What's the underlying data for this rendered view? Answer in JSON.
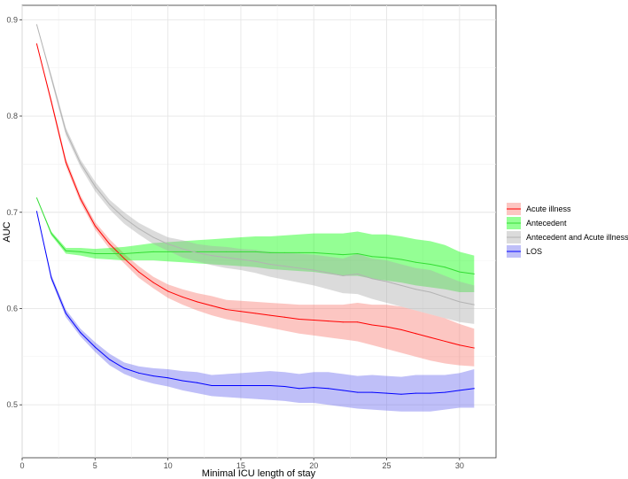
{
  "chart_data": {
    "type": "line",
    "title": "",
    "xlabel": "Minimal ICU length of stay",
    "ylabel": "AUC",
    "xlim": [
      0,
      32.5
    ],
    "ylim": [
      0.445,
      0.915
    ],
    "x_ticks": [
      0,
      5,
      10,
      15,
      20,
      25,
      30
    ],
    "y_ticks": [
      0.5,
      0.6,
      0.7,
      0.8,
      0.9
    ],
    "x_tick_labels": [
      "0",
      "5",
      "10",
      "15",
      "20",
      "25",
      "30"
    ],
    "y_tick_labels": [
      "0.5",
      "0.6",
      "0.7",
      "0.8",
      "0.9"
    ],
    "grid": true,
    "legend_position": "right",
    "x": [
      1,
      2,
      3,
      4,
      5,
      6,
      7,
      8,
      9,
      10,
      11,
      12,
      13,
      14,
      15,
      16,
      17,
      18,
      19,
      20,
      21,
      22,
      23,
      24,
      25,
      26,
      27,
      28,
      29,
      30,
      31
    ],
    "series": [
      {
        "name": "Acute illness",
        "color": "#F8766D",
        "line_color": "#FF0000",
        "values": [
          0.875,
          0.815,
          0.752,
          0.714,
          0.686,
          0.667,
          0.652,
          0.638,
          0.627,
          0.618,
          0.612,
          0.607,
          0.603,
          0.599,
          0.597,
          0.595,
          0.593,
          0.591,
          0.589,
          0.588,
          0.587,
          0.586,
          0.586,
          0.583,
          0.581,
          0.578,
          0.574,
          0.57,
          0.566,
          0.562,
          0.559
        ],
        "lower": [
          0.875,
          0.812,
          0.748,
          0.71,
          0.682,
          0.662,
          0.647,
          0.632,
          0.621,
          0.611,
          0.604,
          0.598,
          0.593,
          0.589,
          0.586,
          0.583,
          0.58,
          0.577,
          0.574,
          0.572,
          0.57,
          0.568,
          0.566,
          0.562,
          0.558,
          0.554,
          0.55,
          0.546,
          0.543,
          0.541,
          0.54
        ],
        "upper": [
          0.875,
          0.818,
          0.756,
          0.718,
          0.69,
          0.672,
          0.657,
          0.644,
          0.633,
          0.625,
          0.62,
          0.616,
          0.613,
          0.609,
          0.608,
          0.607,
          0.606,
          0.605,
          0.604,
          0.604,
          0.604,
          0.604,
          0.606,
          0.604,
          0.604,
          0.602,
          0.598,
          0.594,
          0.59,
          0.584,
          0.579
        ]
      },
      {
        "name": "Antecedent",
        "color": "#00FF00",
        "line_color": "#33DD33",
        "values": [
          0.715,
          0.678,
          0.66,
          0.659,
          0.657,
          0.657,
          0.657,
          0.658,
          0.659,
          0.659,
          0.659,
          0.659,
          0.659,
          0.659,
          0.659,
          0.659,
          0.658,
          0.658,
          0.658,
          0.658,
          0.657,
          0.656,
          0.657,
          0.654,
          0.653,
          0.651,
          0.648,
          0.646,
          0.643,
          0.638,
          0.636
        ],
        "lower": [
          0.715,
          0.676,
          0.657,
          0.655,
          0.652,
          0.651,
          0.65,
          0.65,
          0.65,
          0.649,
          0.648,
          0.647,
          0.646,
          0.645,
          0.644,
          0.643,
          0.641,
          0.64,
          0.639,
          0.638,
          0.636,
          0.634,
          0.634,
          0.631,
          0.629,
          0.627,
          0.624,
          0.622,
          0.62,
          0.617,
          0.617
        ],
        "upper": [
          0.715,
          0.68,
          0.663,
          0.663,
          0.662,
          0.663,
          0.664,
          0.666,
          0.668,
          0.669,
          0.67,
          0.671,
          0.672,
          0.673,
          0.674,
          0.675,
          0.675,
          0.676,
          0.677,
          0.678,
          0.678,
          0.678,
          0.68,
          0.677,
          0.677,
          0.675,
          0.672,
          0.67,
          0.666,
          0.659,
          0.655
        ]
      },
      {
        "name": "Antecedent and Acute illness",
        "color": "#AAAAAA",
        "line_color": "#B3B3B3",
        "values": [
          0.895,
          0.84,
          0.784,
          0.751,
          0.727,
          0.708,
          0.694,
          0.683,
          0.674,
          0.667,
          0.662,
          0.658,
          0.655,
          0.653,
          0.651,
          0.649,
          0.646,
          0.644,
          0.642,
          0.64,
          0.637,
          0.634,
          0.636,
          0.631,
          0.628,
          0.624,
          0.62,
          0.617,
          0.612,
          0.607,
          0.604
        ],
        "lower": [
          0.895,
          0.837,
          0.78,
          0.747,
          0.722,
          0.703,
          0.688,
          0.677,
          0.667,
          0.66,
          0.653,
          0.649,
          0.645,
          0.642,
          0.64,
          0.637,
          0.633,
          0.63,
          0.627,
          0.624,
          0.62,
          0.616,
          0.615,
          0.61,
          0.606,
          0.602,
          0.598,
          0.594,
          0.59,
          0.586,
          0.584
        ],
        "upper": [
          0.895,
          0.843,
          0.788,
          0.755,
          0.732,
          0.713,
          0.7,
          0.689,
          0.681,
          0.674,
          0.671,
          0.667,
          0.665,
          0.664,
          0.662,
          0.661,
          0.659,
          0.658,
          0.657,
          0.656,
          0.654,
          0.652,
          0.657,
          0.652,
          0.65,
          0.646,
          0.642,
          0.64,
          0.634,
          0.628,
          0.624
        ]
      },
      {
        "name": "LOS",
        "color": "#6666EE",
        "line_color": "#0000FF",
        "values": [
          0.701,
          0.632,
          0.595,
          0.575,
          0.56,
          0.547,
          0.538,
          0.533,
          0.53,
          0.528,
          0.525,
          0.523,
          0.52,
          0.52,
          0.52,
          0.52,
          0.52,
          0.519,
          0.517,
          0.518,
          0.517,
          0.515,
          0.513,
          0.513,
          0.512,
          0.511,
          0.512,
          0.512,
          0.513,
          0.515,
          0.517
        ],
        "lower": [
          0.701,
          0.629,
          0.591,
          0.571,
          0.555,
          0.541,
          0.532,
          0.526,
          0.522,
          0.519,
          0.515,
          0.512,
          0.509,
          0.508,
          0.507,
          0.506,
          0.505,
          0.504,
          0.502,
          0.502,
          0.5,
          0.498,
          0.496,
          0.495,
          0.494,
          0.493,
          0.493,
          0.493,
          0.495,
          0.497,
          0.497
        ],
        "upper": [
          0.701,
          0.635,
          0.599,
          0.579,
          0.565,
          0.553,
          0.544,
          0.54,
          0.538,
          0.537,
          0.535,
          0.534,
          0.531,
          0.532,
          0.533,
          0.534,
          0.535,
          0.534,
          0.532,
          0.534,
          0.534,
          0.532,
          0.53,
          0.531,
          0.53,
          0.529,
          0.531,
          0.531,
          0.531,
          0.533,
          0.537
        ]
      }
    ]
  }
}
